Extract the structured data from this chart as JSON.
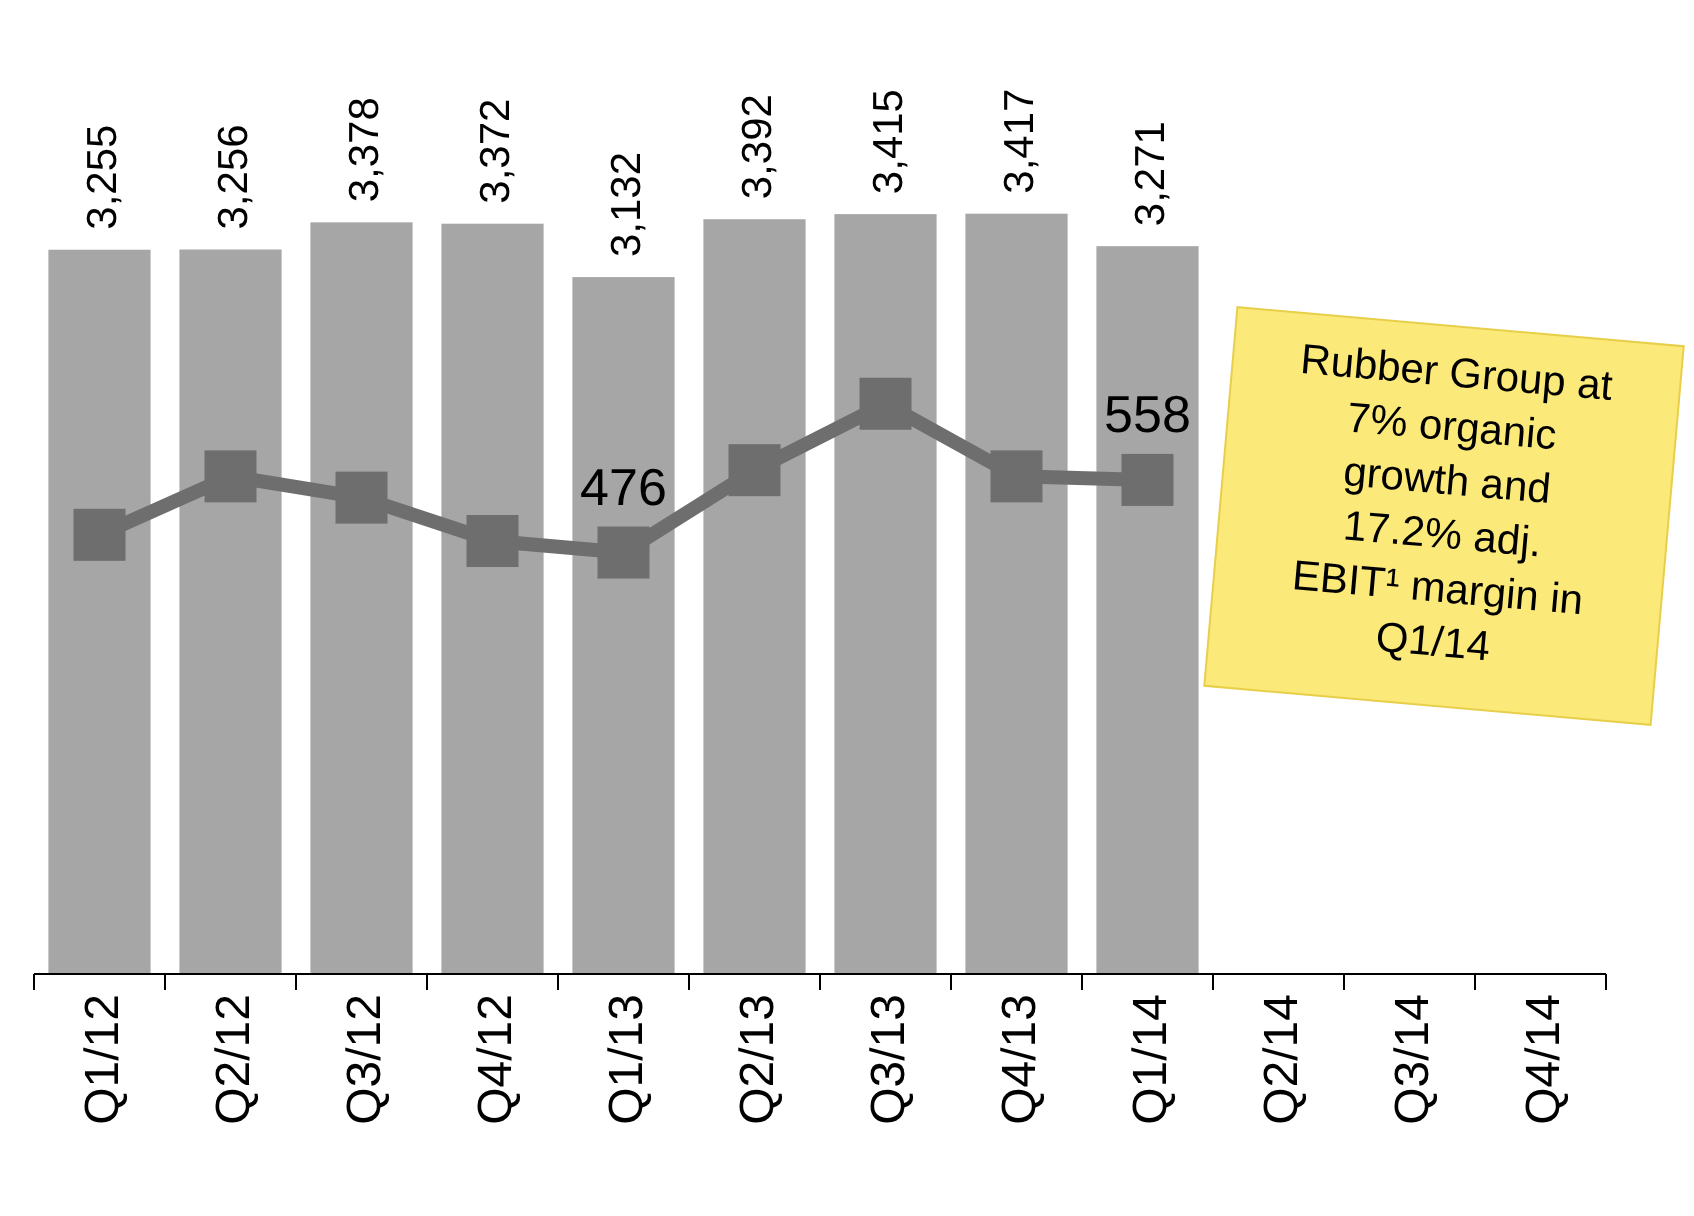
{
  "chart_data": {
    "type": "bar",
    "categories": [
      "Q1/12",
      "Q2/12",
      "Q3/12",
      "Q4/12",
      "Q1/13",
      "Q2/13",
      "Q3/13",
      "Q4/13",
      "Q1/14",
      "Q2/14",
      "Q3/14",
      "Q4/14"
    ],
    "series": [
      {
        "color": "#a6a6a6",
        "values": [
          3255,
          3256,
          3378,
          3372,
          3132,
          3392,
          3415,
          3417,
          3271,
          null,
          null,
          null
        ],
        "value_labels": [
          "3,255",
          "3,256",
          "3,378",
          "3,372",
          "3,132",
          "3,392",
          "3,415",
          "3,417",
          "3,271",
          null,
          null,
          null
        ]
      },
      {
        "type": "line",
        "axis": "y2",
        "color": "#6e6e6e",
        "values": [
          496,
          562,
          538,
          489,
          476,
          569,
          644,
          562,
          558,
          null,
          null,
          null
        ],
        "value_labels": [
          null,
          null,
          null,
          null,
          "476",
          null,
          null,
          null,
          "558",
          null,
          null,
          null
        ]
      }
    ],
    "tick_labels": "x",
    "marker": "square",
    "line_style": "solid",
    "annotations": [
      "Rubber Group at 7% organic growth and 17.2% adj. EBIT¹ margin in Q1/14"
    ]
  }
}
